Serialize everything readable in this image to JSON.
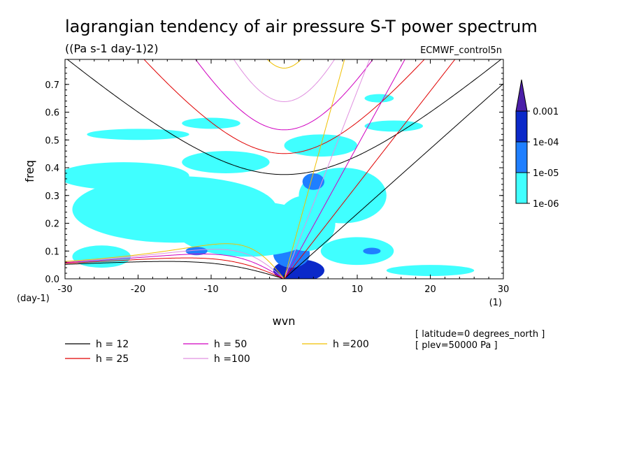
{
  "chart_data": {
    "type": "heatmap",
    "title": "lagrangian tendency of air pressure S-T power spectrum",
    "subtitle": "((Pa s-1 day-1)2)",
    "source_label": "ECMWF_control5n",
    "xlabel": "wvn",
    "ylabel": "freq",
    "x_unit_label": "(1)",
    "y_unit_label": "(day-1)",
    "xlim": [
      -30,
      30
    ],
    "ylim": [
      0,
      0.79
    ],
    "x_ticks": [
      -30,
      -20,
      -10,
      0,
      10,
      20,
      30
    ],
    "x_tick_labels": [
      "-30",
      "-20",
      "-10",
      "0",
      "10",
      "20",
      "30"
    ],
    "y_ticks": [
      0,
      0.1,
      0.2,
      0.3,
      0.4,
      0.5,
      0.6,
      0.7
    ],
    "y_tick_labels": [
      "0.0",
      "0.1",
      "0.2",
      "0.3",
      "0.4",
      "0.5",
      "0.6",
      "0.7"
    ],
    "colorbar": {
      "levels": [
        "1e-06",
        "1e-05",
        "1e-04",
        "0.001"
      ],
      "colors": [
        "#40ffff",
        "#1f7fff",
        "#0b29c9",
        "#4b1fa8"
      ]
    },
    "notes": [
      "[ latitude=0 degrees_north ]",
      "[ plev=50000 Pa ]"
    ],
    "dispersion_curves": [
      {
        "label": "h = 12",
        "h": 12,
        "color": "#000000"
      },
      {
        "label": "h = 25",
        "h": 25,
        "color": "#e00000"
      },
      {
        "label": "h = 50",
        "h": 50,
        "color": "#d000c0"
      },
      {
        "label": "h =100",
        "h": 100,
        "color": "#e090e0"
      },
      {
        "label": "h =200",
        "h": 200,
        "color": "#f0c000"
      }
    ],
    "spectrum_blobs": [
      {
        "x": 2,
        "y": 0.03,
        "rx": 3.5,
        "ry": 0.04,
        "level": 3
      },
      {
        "x": 1,
        "y": 0.09,
        "rx": 2.5,
        "ry": 0.05,
        "level": 2
      },
      {
        "x": -4,
        "y": 0.12,
        "rx": 3,
        "ry": 0.025,
        "level": 2
      },
      {
        "x": 3,
        "y": 0.2,
        "rx": 4,
        "ry": 0.1,
        "level": 1
      },
      {
        "x": -5,
        "y": 0.18,
        "rx": 10,
        "ry": 0.1,
        "level": 1
      },
      {
        "x": -15,
        "y": 0.25,
        "rx": 14,
        "ry": 0.12,
        "level": 1
      },
      {
        "x": 8,
        "y": 0.3,
        "rx": 6,
        "ry": 0.1,
        "level": 1
      },
      {
        "x": -22,
        "y": 0.37,
        "rx": 9,
        "ry": 0.05,
        "level": 1
      },
      {
        "x": -8,
        "y": 0.42,
        "rx": 6,
        "ry": 0.04,
        "level": 1
      },
      {
        "x": 5,
        "y": 0.48,
        "rx": 5,
        "ry": 0.04,
        "level": 1
      },
      {
        "x": -20,
        "y": 0.52,
        "rx": 7,
        "ry": 0.02,
        "level": 1
      },
      {
        "x": -10,
        "y": 0.56,
        "rx": 4,
        "ry": 0.02,
        "level": 1
      },
      {
        "x": 15,
        "y": 0.55,
        "rx": 4,
        "ry": 0.02,
        "level": 1
      },
      {
        "x": 20,
        "y": 0.03,
        "rx": 6,
        "ry": 0.02,
        "level": 1
      },
      {
        "x": 10,
        "y": 0.1,
        "rx": 5,
        "ry": 0.05,
        "level": 1
      },
      {
        "x": -25,
        "y": 0.08,
        "rx": 4,
        "ry": 0.04,
        "level": 1
      },
      {
        "x": 13,
        "y": 0.65,
        "rx": 2,
        "ry": 0.015,
        "level": 1
      },
      {
        "x": 12,
        "y": 0.1,
        "rx": 1.2,
        "ry": 0.012,
        "level": 2
      },
      {
        "x": -12,
        "y": 0.1,
        "rx": 1.5,
        "ry": 0.015,
        "level": 2
      },
      {
        "x": 4,
        "y": 0.35,
        "rx": 1.5,
        "ry": 0.03,
        "level": 2
      }
    ]
  }
}
